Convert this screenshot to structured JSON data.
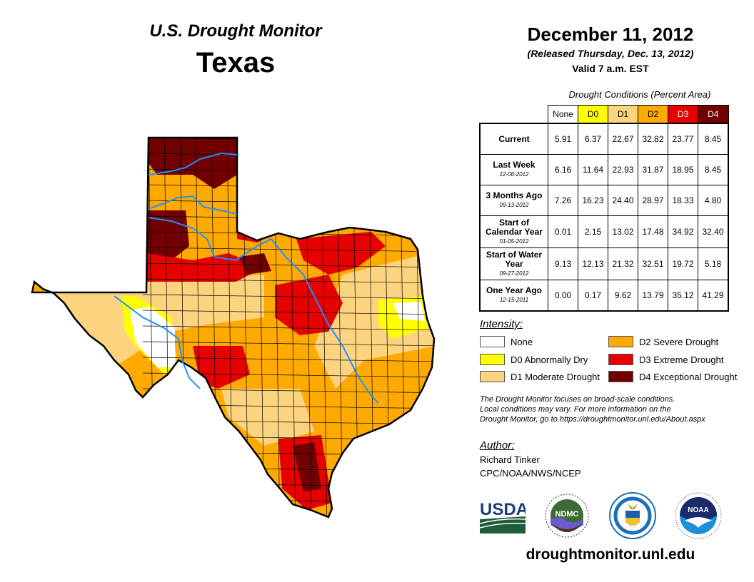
{
  "header": {
    "title": "U.S. Drought Monitor",
    "state": "Texas",
    "date": "December 11, 2012",
    "released": "(Released Thursday, Dec. 13, 2012)",
    "valid": "Valid 7 a.m. EST"
  },
  "table": {
    "caption": "Drought Conditions (Percent Area)",
    "columns": [
      {
        "label": "None",
        "color": "#ffffff",
        "text_color": "#000000"
      },
      {
        "label": "D0",
        "color": "#ffff00",
        "text_color": "#000000"
      },
      {
        "label": "D1",
        "color": "#fcd37f",
        "text_color": "#000000"
      },
      {
        "label": "D2",
        "color": "#ffaa00",
        "text_color": "#000000"
      },
      {
        "label": "D3",
        "color": "#e60000",
        "text_color": "#ffffff"
      },
      {
        "label": "D4",
        "color": "#730000",
        "text_color": "#ffffff"
      }
    ],
    "rows": [
      {
        "label": "Current",
        "date": "",
        "values": [
          "5.91",
          "6.37",
          "22.67",
          "32.82",
          "23.77",
          "8.45"
        ]
      },
      {
        "label": "Last Week",
        "date": "12-06-2012",
        "values": [
          "6.16",
          "11.64",
          "22.93",
          "31.87",
          "18.95",
          "8.45"
        ]
      },
      {
        "label": "3 Months Ago",
        "date": "09-13-2012",
        "values": [
          "7.26",
          "16.23",
          "24.40",
          "28.97",
          "18.33",
          "4.80"
        ]
      },
      {
        "label": "Start of Calendar Year",
        "date": "01-05-2012",
        "values": [
          "0.01",
          "2.15",
          "13.02",
          "17.48",
          "34.92",
          "32.40"
        ]
      },
      {
        "label": "Start of Water Year",
        "date": "09-27-2012",
        "values": [
          "9.13",
          "12.13",
          "21.32",
          "32.51",
          "19.72",
          "5.18"
        ]
      },
      {
        "label": "One Year Ago",
        "date": "12-15-2011",
        "values": [
          "0.00",
          "0.17",
          "9.62",
          "13.79",
          "35.12",
          "41.29"
        ]
      }
    ]
  },
  "legend": {
    "title": "Intensity:",
    "items": [
      {
        "label": "None",
        "color": "#ffffff"
      },
      {
        "label": "D0 Abnormally Dry",
        "color": "#ffff00"
      },
      {
        "label": "D1 Moderate Drought",
        "color": "#fcd37f"
      },
      {
        "label": "D2 Severe Drought",
        "color": "#ffaa00"
      },
      {
        "label": "D3 Extreme Drought",
        "color": "#e60000"
      },
      {
        "label": "D4 Exceptional Drought",
        "color": "#730000"
      }
    ]
  },
  "disclaimer": [
    "The Drought Monitor focuses on broad-scale conditions.",
    "Local conditions may vary. For more information on the",
    "Drought Monitor, go to https://droughtmonitor.unl.edu/About.aspx"
  ],
  "author": {
    "title": "Author:",
    "name": "Richard Tinker",
    "org": "CPC/NOAA/NWS/NCEP"
  },
  "logos": [
    {
      "name": "USDA",
      "text": "USDA"
    },
    {
      "name": "NDMC",
      "text": "NDMC"
    },
    {
      "name": "Department of Commerce",
      "text": ""
    },
    {
      "name": "NOAA",
      "text": "NOAA"
    }
  ],
  "website": "droughtmonitor.unl.edu",
  "map": {
    "region": "Texas",
    "river_color": "#1e90ff"
  }
}
